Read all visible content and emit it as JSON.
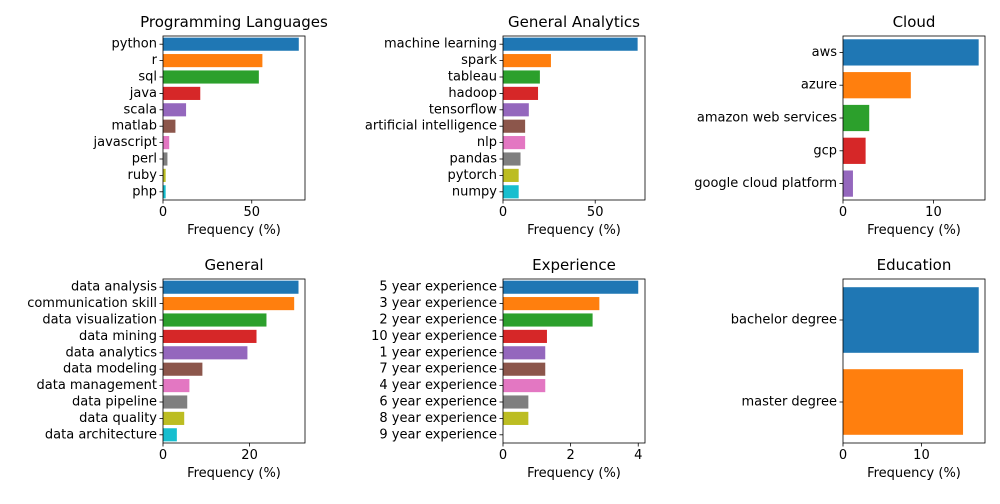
{
  "palette": [
    "#1f77b4",
    "#ff7f0e",
    "#2ca02c",
    "#d62728",
    "#9467bd",
    "#8c564b",
    "#e377c2",
    "#7f7f7f",
    "#bcbd22",
    "#17becf"
  ],
  "chart_data": [
    {
      "type": "bar",
      "orientation": "horizontal",
      "title": "Programming Languages",
      "xlabel": "Frequency (%)",
      "categories": [
        "python",
        "r",
        "sql",
        "java",
        "scala",
        "matlab",
        "javascript",
        "perl",
        "ruby",
        "php"
      ],
      "values": [
        76.5,
        56,
        54,
        21,
        13,
        7,
        3.5,
        2.5,
        1.5,
        1.5
      ],
      "xlim": [
        0,
        80
      ],
      "xticks": [
        0,
        50
      ]
    },
    {
      "type": "bar",
      "orientation": "horizontal",
      "title": "General Analytics",
      "xlabel": "Frequency (%)",
      "categories": [
        "machine learning",
        "spark",
        "tableau",
        "hadoop",
        "tensorflow",
        "artificial intelligence",
        "nlp",
        "pandas",
        "pytorch",
        "numpy"
      ],
      "values": [
        73,
        26,
        20,
        19,
        14,
        12,
        12,
        9.5,
        8.5,
        8.5
      ],
      "xlim": [
        0,
        77
      ],
      "xticks": [
        0,
        50
      ]
    },
    {
      "type": "bar",
      "orientation": "horizontal",
      "title": "Cloud",
      "xlabel": "Frequency (%)",
      "categories": [
        "aws",
        "azure",
        "amazon web services",
        "gcp",
        "google cloud platform"
      ],
      "values": [
        15,
        7.5,
        2.9,
        2.5,
        1.1
      ],
      "xlim": [
        0,
        15.7
      ],
      "xticks": [
        0,
        10
      ]
    },
    {
      "type": "bar",
      "orientation": "horizontal",
      "title": "General",
      "xlabel": "Frequency (%)",
      "categories": [
        "data analysis",
        "communication skill",
        "data visualization",
        "data mining",
        "data analytics",
        "data modeling",
        "data management",
        "data pipeline",
        "data quality",
        "data architecture"
      ],
      "values": [
        31.3,
        30.3,
        23.9,
        21.6,
        19.5,
        9.1,
        6.1,
        5.6,
        4.9,
        3.2
      ],
      "xlim": [
        0,
        32.8
      ],
      "xticks": [
        0,
        20
      ]
    },
    {
      "type": "bar",
      "orientation": "horizontal",
      "title": "Experience",
      "xlabel": "Frequency (%)",
      "categories": [
        "5 year experience",
        "3 year experience",
        "2 year experience",
        "10 year experience",
        "1 year experience",
        "7 year experience",
        "4 year experience",
        "6 year experience",
        "8 year experience",
        "9 year experience"
      ],
      "values": [
        4.0,
        2.85,
        2.65,
        1.3,
        1.25,
        1.25,
        1.25,
        0.75,
        0.75,
        0
      ],
      "xlim": [
        0,
        4.2
      ],
      "xticks": [
        0,
        2,
        4
      ]
    },
    {
      "type": "bar",
      "orientation": "horizontal",
      "title": "Education",
      "xlabel": "Frequency (%)",
      "categories": [
        "bachelor degree",
        "master degree"
      ],
      "values": [
        17.3,
        15.3
      ],
      "xlim": [
        0,
        18.1
      ],
      "xticks": [
        0,
        10
      ]
    }
  ]
}
